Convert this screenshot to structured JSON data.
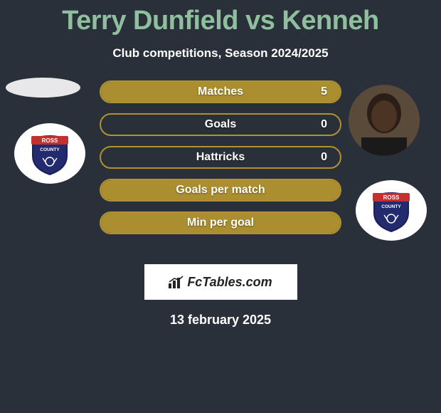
{
  "title_text": "Terry Dunfield vs Kenneh",
  "title_color": "#8fbf9e",
  "subtitle": "Club competitions, Season 2024/2025",
  "background_color": "#2a3039",
  "date": "13 february 2025",
  "brand_label": "FcTables.com",
  "bar_border_color": "#b09232",
  "bar_fill_color": "#ab8e2f",
  "stats": [
    {
      "label": "Matches",
      "value": "5",
      "fill_pct": 100
    },
    {
      "label": "Goals",
      "value": "0",
      "fill_pct": 0
    },
    {
      "label": "Hattricks",
      "value": "0",
      "fill_pct": 0
    },
    {
      "label": "Goals per match",
      "value": "",
      "fill_pct": 100
    },
    {
      "label": "Min per goal",
      "value": "",
      "fill_pct": 100
    }
  ],
  "crest": {
    "top_text": "ROSS",
    "bottom_text": "COUNTY",
    "shield_fill": "#232a6e",
    "banner_fill": "#c33030",
    "outline": "#18205a"
  }
}
